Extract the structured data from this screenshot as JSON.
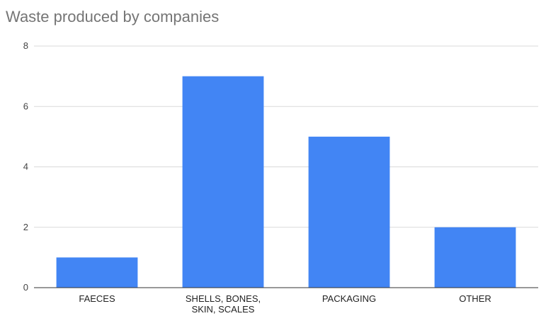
{
  "chart_data": {
    "type": "bar",
    "title": "Waste produced by companies",
    "categories": [
      "FAECES",
      "SHELLS, BONES, SKIN, SCALES",
      "PACKAGING",
      "OTHER"
    ],
    "category_label_lines": [
      [
        "FAECES"
      ],
      [
        "SHELLS, BONES,",
        "SKIN, SCALES"
      ],
      [
        "PACKAGING"
      ],
      [
        "OTHER"
      ]
    ],
    "values": [
      1,
      7,
      5,
      2
    ],
    "xlabel": "",
    "ylabel": "",
    "ylim": [
      0,
      8
    ],
    "yticks": [
      0,
      2,
      4,
      6,
      8
    ],
    "grid": true,
    "legend": "none",
    "bar_color": "#4285f4",
    "grid_color": "#dadada",
    "axis_color": "#333333"
  }
}
